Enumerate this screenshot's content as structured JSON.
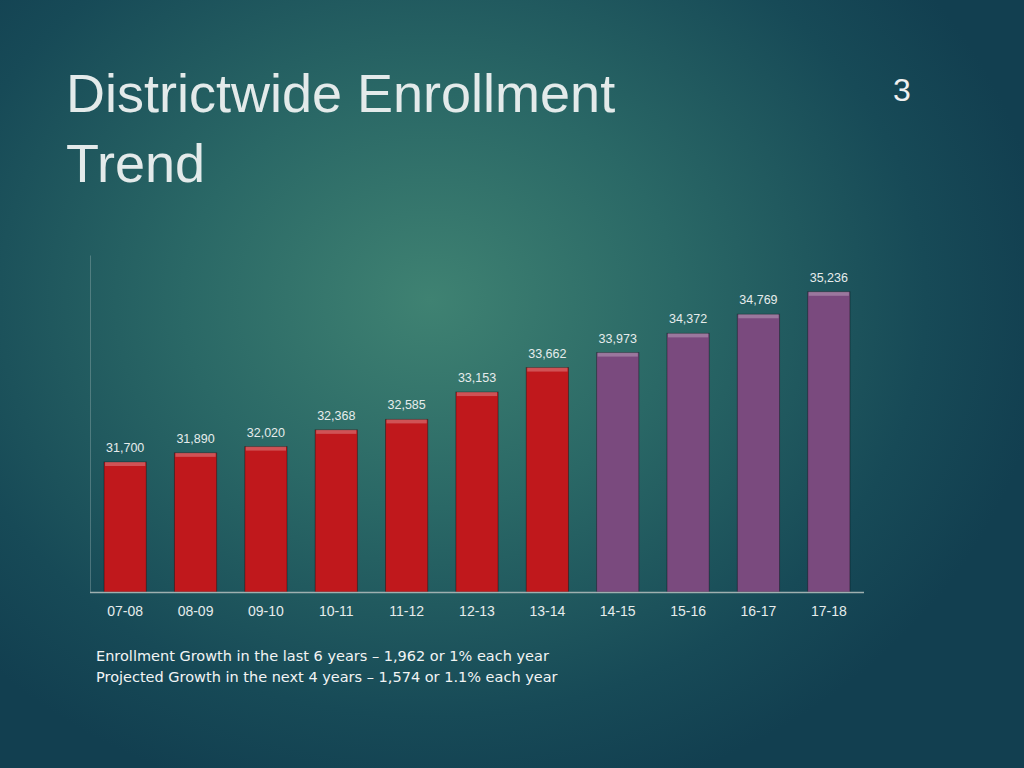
{
  "page_number": 3,
  "chart_data": {
    "type": "bar",
    "title": "Districtwide Enrollment Trend",
    "categories": [
      "07-08",
      "08-09",
      "09-10",
      "10-11",
      "11-12",
      "12-13",
      "13-14",
      "14-15",
      "15-16",
      "16-17",
      "17-18"
    ],
    "values": [
      31700,
      31890,
      32020,
      32368,
      32585,
      33153,
      33662,
      33973,
      34372,
      34769,
      35236
    ],
    "value_labels": [
      "31,700",
      "31,890",
      "32,020",
      "32,368",
      "32,585",
      "33,153",
      "33,662",
      "33,973",
      "34,372",
      "34,769",
      "35,236"
    ],
    "colors": [
      "#c0181c",
      "#c0181c",
      "#c0181c",
      "#c0181c",
      "#c0181c",
      "#c0181c",
      "#c0181c",
      "#7a4a7e",
      "#7a4a7e",
      "#7a4a7e",
      "#7a4a7e"
    ],
    "ylim": [
      29000,
      36000
    ],
    "data_labels": true,
    "tick_labels": "x",
    "grid": false,
    "annotations": [
      "Enrollment Growth in the last 6 years – 1,962 or 1% each year",
      "Projected Growth in the next 4 years – 1,574 or 1.1% each year"
    ]
  }
}
